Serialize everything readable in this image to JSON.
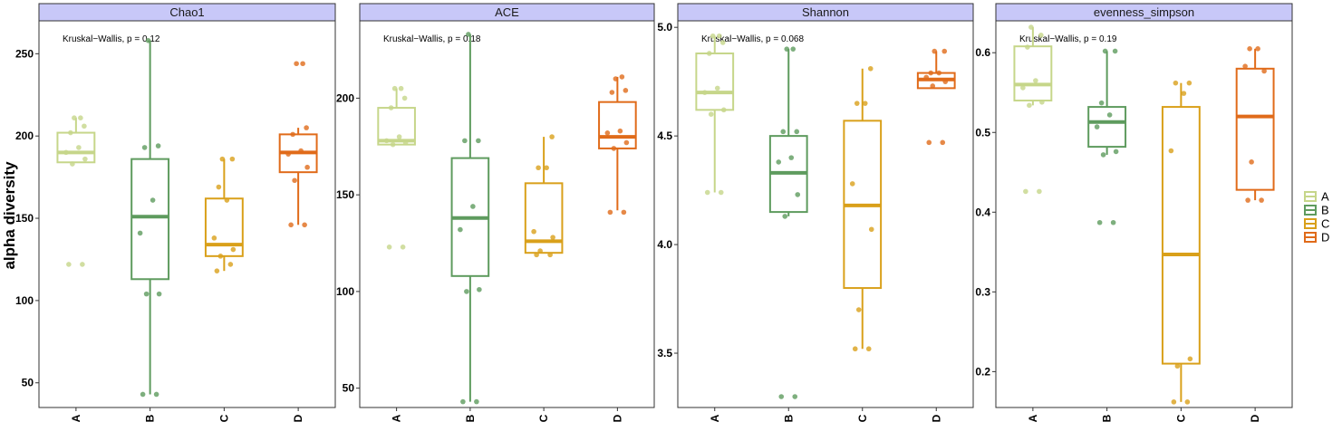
{
  "chart_data": {
    "type": "boxplot",
    "ylabel": "alpha diversity",
    "categories": [
      "A",
      "B",
      "C",
      "D"
    ],
    "colors": {
      "A": "#c6d68a",
      "B": "#5e9b5e",
      "C": "#d9a01a",
      "D": "#e06b1a"
    },
    "strip_fill": "#c8c8f8",
    "legend": {
      "position": "right",
      "entries": [
        "A",
        "B",
        "C",
        "D"
      ]
    },
    "panels": [
      {
        "title": "Chao1",
        "test_label": "Kruskal−Wallis, p = 0.12",
        "ylim": [
          35,
          270
        ],
        "yticks": [
          50,
          100,
          150,
          200,
          250
        ],
        "groups": [
          {
            "name": "A",
            "q1": 184,
            "median": 190,
            "q3": 202,
            "whisker_low": 184,
            "whisker_high": 211,
            "points": [
              122,
              122,
              183,
              186,
              190,
              193,
              202,
              206,
              211,
              211
            ]
          },
          {
            "name": "B",
            "q1": 113,
            "median": 151,
            "q3": 186,
            "whisker_low": 43,
            "whisker_high": 258,
            "points": [
              43,
              43,
              104,
              104,
              141,
              161,
              193,
              194,
              258
            ]
          },
          {
            "name": "C",
            "q1": 127,
            "median": 134,
            "q3": 162,
            "whisker_low": 118,
            "whisker_high": 186,
            "points": [
              118,
              122,
              127,
              131,
              138,
              161,
              169,
              186,
              186
            ]
          },
          {
            "name": "D",
            "q1": 178,
            "median": 190,
            "q3": 201,
            "whisker_low": 146,
            "whisker_high": 205,
            "points": [
              146,
              146,
              173,
              181,
              189,
              191,
              201,
              205,
              244,
              244
            ]
          }
        ]
      },
      {
        "title": "ACE",
        "test_label": "Kruskal−Wallis, p = 0.18",
        "ylim": [
          40,
          240
        ],
        "yticks": [
          50,
          100,
          150,
          200
        ],
        "groups": [
          {
            "name": "A",
            "q1": 176,
            "median": 178,
            "q3": 195,
            "whisker_low": 176,
            "whisker_high": 205,
            "points": [
              123,
              123,
              176,
              177,
              178,
              180,
              195,
              200,
              205,
              205
            ]
          },
          {
            "name": "B",
            "q1": 108,
            "median": 138,
            "q3": 169,
            "whisker_low": 43,
            "whisker_high": 233,
            "points": [
              43,
              43,
              100,
              101,
              132,
              144,
              178,
              178,
              233
            ]
          },
          {
            "name": "C",
            "q1": 120,
            "median": 126,
            "q3": 156,
            "whisker_low": 120,
            "whisker_high": 180,
            "points": [
              119,
              119,
              121,
              128,
              131,
              164,
              164,
              180
            ]
          },
          {
            "name": "D",
            "q1": 174,
            "median": 180,
            "q3": 198,
            "whisker_low": 142,
            "whisker_high": 211,
            "points": [
              141,
              141,
              174,
              177,
              182,
              183,
              203,
              204,
              210,
              211
            ]
          }
        ]
      },
      {
        "title": "Shannon",
        "test_label": "Kruskal−Wallis, p = 0.068",
        "ylim": [
          3.25,
          5.03
        ],
        "yticks": [
          3.5,
          4.0,
          4.5,
          5.0
        ],
        "yticklabels": [
          "3.5",
          "4.0",
          "4.5",
          "5.0"
        ],
        "groups": [
          {
            "name": "A",
            "q1": 4.62,
            "median": 4.7,
            "q3": 4.88,
            "whisker_low": 4.24,
            "whisker_high": 4.96,
            "points": [
              4.24,
              4.24,
              4.6,
              4.62,
              4.7,
              4.72,
              4.88,
              4.93,
              4.96,
              4.96
            ]
          },
          {
            "name": "B",
            "q1": 4.15,
            "median": 4.33,
            "q3": 4.5,
            "whisker_low": 4.13,
            "whisker_high": 4.9,
            "points": [
              3.3,
              3.3,
              4.13,
              4.23,
              4.38,
              4.4,
              4.52,
              4.52,
              4.9,
              4.9
            ]
          },
          {
            "name": "C",
            "q1": 3.8,
            "median": 4.18,
            "q3": 4.57,
            "whisker_low": 3.52,
            "whisker_high": 4.81,
            "points": [
              3.52,
              3.52,
              3.7,
              4.07,
              4.28,
              4.65,
              4.65,
              4.81
            ]
          },
          {
            "name": "D",
            "q1": 4.72,
            "median": 4.76,
            "q3": 4.79,
            "whisker_low": 4.72,
            "whisker_high": 4.89,
            "points": [
              4.47,
              4.47,
              4.73,
              4.75,
              4.77,
              4.79,
              4.79,
              4.89,
              4.89
            ]
          }
        ]
      },
      {
        "title": "evenness_simpson",
        "test_label": "Kruskal−Wallis, p = 0.19",
        "ylim": [
          0.155,
          0.64
        ],
        "yticks": [
          0.2,
          0.3,
          0.4,
          0.5,
          0.6
        ],
        "yticklabels": [
          "0.2",
          "0.3",
          "0.4",
          "0.5",
          "0.6"
        ],
        "groups": [
          {
            "name": "A",
            "q1": 0.54,
            "median": 0.56,
            "q3": 0.608,
            "whisker_low": 0.534,
            "whisker_high": 0.632,
            "points": [
              0.426,
              0.426,
              0.534,
              0.538,
              0.556,
              0.565,
              0.607,
              0.622,
              0.632
            ]
          },
          {
            "name": "B",
            "q1": 0.482,
            "median": 0.513,
            "q3": 0.532,
            "whisker_low": 0.472,
            "whisker_high": 0.602,
            "points": [
              0.387,
              0.387,
              0.472,
              0.476,
              0.507,
              0.522,
              0.537,
              0.602,
              0.602
            ]
          },
          {
            "name": "C",
            "q1": 0.21,
            "median": 0.347,
            "q3": 0.532,
            "whisker_low": 0.162,
            "whisker_high": 0.562,
            "points": [
              0.162,
              0.162,
              0.207,
              0.216,
              0.477,
              0.549,
              0.562,
              0.562
            ]
          },
          {
            "name": "D",
            "q1": 0.428,
            "median": 0.52,
            "q3": 0.58,
            "whisker_low": 0.415,
            "whisker_high": 0.605,
            "points": [
              0.415,
              0.415,
              0.463,
              0.577,
              0.583,
              0.605,
              0.605
            ]
          }
        ]
      }
    ]
  }
}
